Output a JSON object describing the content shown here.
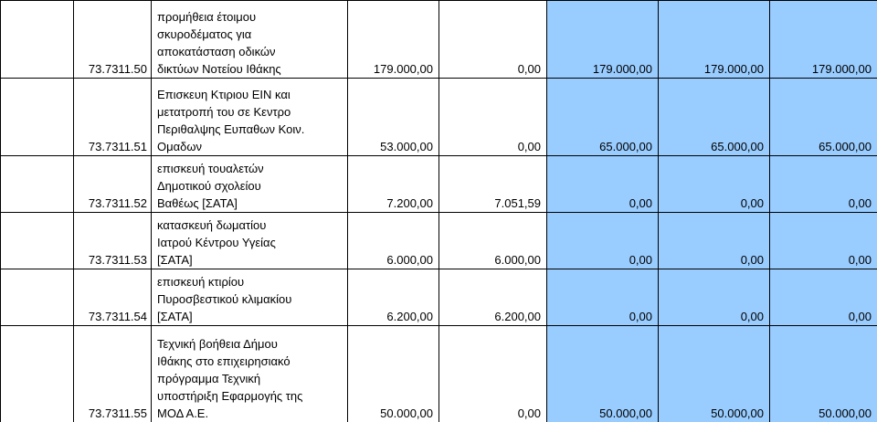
{
  "table": {
    "rows": [
      {
        "code": "73.7311.50",
        "description": [
          "προμήθεια έτοιμου",
          "σκυροδέματος για",
          "αποκατάσταση οδικών",
          "δικτύων Νοτείου Ιθάκης"
        ],
        "values": [
          "179.000,00",
          "0,00",
          "179.000,00",
          "179.000,00",
          "179.000,00"
        ]
      },
      {
        "code": "73.7311.51",
        "description": [
          "Επισκευη Κτιριου ΕΙΝ και",
          "μετατροπή του  σε Κεντρο",
          "Περιθαλψης Ευπαθων Κοιν.",
          "Ομαδων"
        ],
        "values": [
          "53.000,00",
          "0,00",
          "65.000,00",
          "65.000,00",
          "65.000,00"
        ]
      },
      {
        "code": "73.7311.52",
        "description": [
          "επισκευή τουαλετών",
          "Δημοτικού σχολείου",
          "Βαθέως [ΣΑΤΑ]"
        ],
        "values": [
          "7.200,00",
          "7.051,59",
          "0,00",
          "0,00",
          "0,00"
        ]
      },
      {
        "code": "73.7311.53",
        "description": [
          "κατασκευή δωματίου",
          "Ιατρού Κέντρου Υγείας",
          "[ΣΑΤΑ]"
        ],
        "values": [
          "6.000,00",
          "6.000,00",
          "0,00",
          "0,00",
          "0,00"
        ]
      },
      {
        "code": "73.7311.54",
        "description": [
          "επισκευή κτιρίου",
          "Πυροσβεστικού κλιμακίου",
          "[ΣΑΤΑ]"
        ],
        "values": [
          "6.200,00",
          "6.200,00",
          "0,00",
          "0,00",
          "0,00"
        ]
      },
      {
        "code": "73.7311.55",
        "description": [
          "Τεχνική βοήθεια Δήμου",
          "Ιθάκης στο επιχειρησιακό",
          "πρόγραμμα Τεχνική",
          "υποστήριξη Εφαρμογής της",
          "ΜΟΔ Α.Ε."
        ],
        "values": [
          "50.000,00",
          "0,00",
          "50.000,00",
          "50.000,00",
          "50.000,00"
        ]
      }
    ]
  }
}
